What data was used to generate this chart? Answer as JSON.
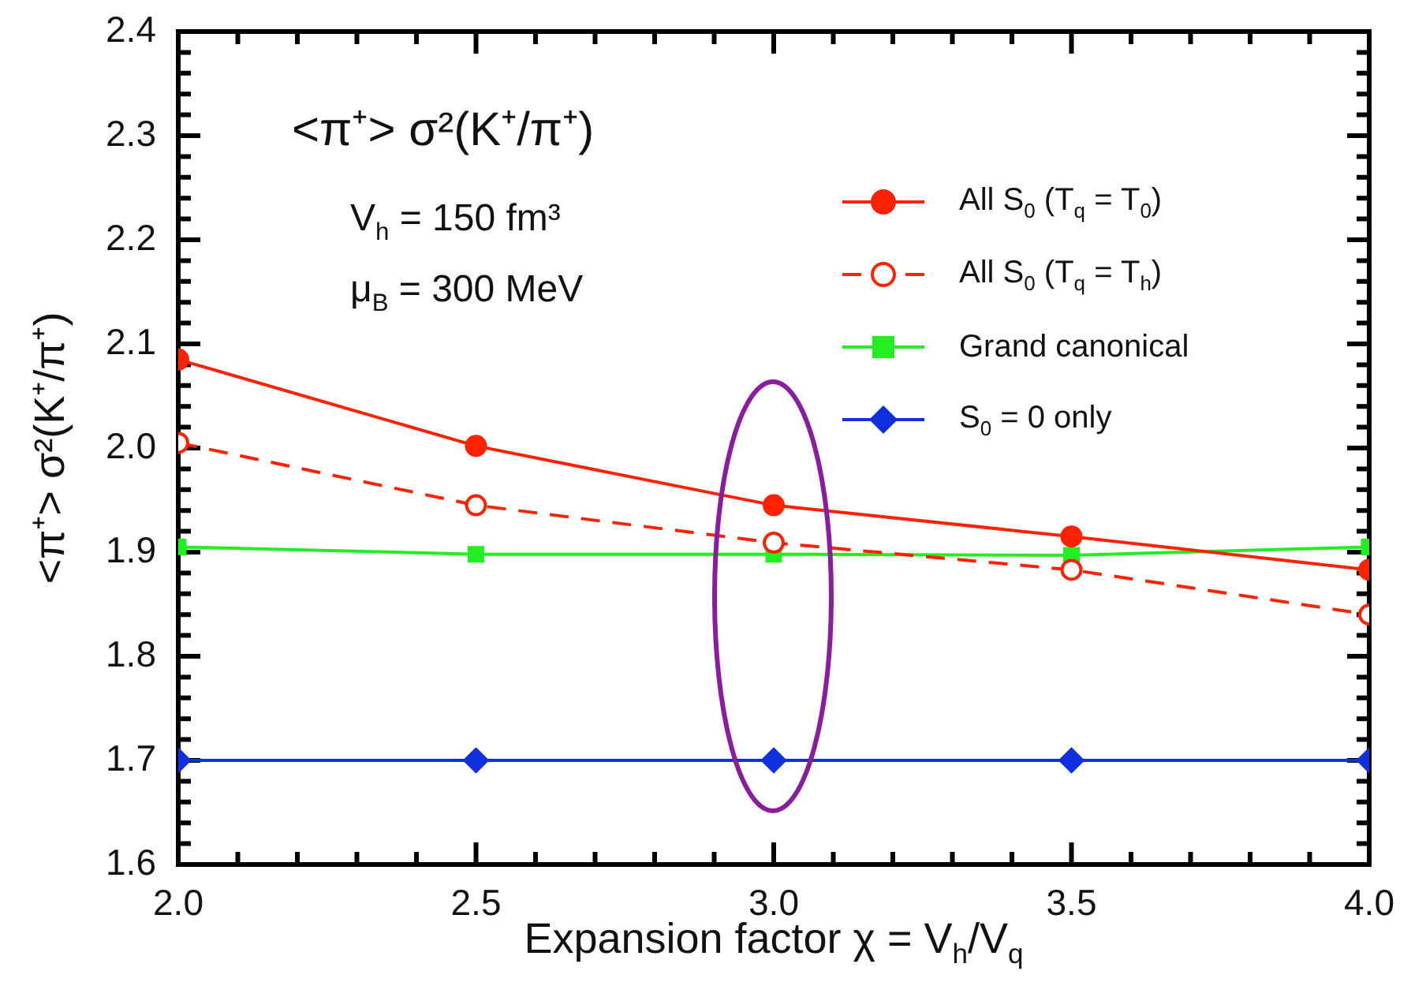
{
  "chart_data": {
    "type": "line",
    "title": "<π⁺> σ²(K⁺/π⁺)",
    "xlabel": "Expansion factor χ = V$_{h}$/V$_{q}$",
    "ylabel": "<π⁺> σ²(K⁺/π⁺)",
    "annotations": [
      "V$_{h}$ = 150 fm³",
      "μ$_{B}$ = 300 MeV"
    ],
    "x": [
      2.0,
      2.5,
      3.0,
      3.5,
      4.0
    ],
    "series": [
      {
        "name": "All S$_{0}$ (T$_{q}$ = T$_{0}$)",
        "color": "#ff2200",
        "marker": "circle",
        "line_style": "solid",
        "values": [
          2.085,
          2.002,
          1.945,
          1.915,
          1.883
        ]
      },
      {
        "name": "All S$_{0}$ (T$_{q}$ = T$_{h}$)",
        "color": "#ff2200",
        "marker": "circle",
        "line_style": "dashed",
        "values": [
          2.005,
          1.945,
          1.909,
          1.883,
          1.84
        ]
      },
      {
        "name": "Grand canonical",
        "color": "#22ee22",
        "marker": "square",
        "line_style": "solid",
        "values": [
          1.905,
          1.898,
          1.898,
          1.897,
          1.905
        ]
      },
      {
        "name": "S$_{0}$ = 0  only",
        "color": "#1030e0",
        "marker": "diamond",
        "line_style": "solid",
        "values": [
          1.7,
          1.7,
          1.7,
          1.7,
          1.7
        ]
      }
    ],
    "xlim": [
      2.0,
      4.0
    ],
    "xticks": [
      {
        "value": 2.0,
        "label": "2.0"
      },
      {
        "value": 2.1,
        "label": null
      },
      {
        "value": 2.2,
        "label": null
      },
      {
        "value": 2.3,
        "label": null
      },
      {
        "value": 2.4,
        "label": null
      },
      2.5,
      {
        "value": 2.6,
        "label": null
      },
      {
        "value": 2.7,
        "label": null
      },
      {
        "value": 2.8,
        "label": null
      },
      {
        "value": 2.9,
        "label": null
      },
      {
        "value": 3.0,
        "label": "3.0"
      },
      {
        "value": 3.1,
        "label": null
      },
      {
        "value": 3.2,
        "label": null
      },
      {
        "value": 3.3,
        "label": null
      },
      {
        "value": 3.4,
        "label": null
      },
      3.5,
      {
        "value": 3.6,
        "label": null
      },
      {
        "value": 3.7,
        "label": null
      },
      {
        "value": 3.8,
        "label": null
      },
      {
        "value": 3.9,
        "label": null
      },
      {
        "value": 4.0,
        "label": "4.0"
      }
    ],
    "ylim": [
      1.6,
      2.4
    ],
    "yticks": [
      1.6,
      {
        "value": 1.62,
        "label": null
      },
      {
        "value": 1.64,
        "label": null
      },
      {
        "value": 1.66,
        "label": null
      },
      {
        "value": 1.68,
        "label": null
      },
      1.7,
      {
        "value": 1.72,
        "label": null
      },
      {
        "value": 1.74,
        "label": null
      },
      {
        "value": 1.76,
        "label": null
      },
      {
        "value": 1.78,
        "label": null
      },
      1.8,
      {
        "value": 1.82,
        "label": null
      },
      {
        "value": 1.84,
        "label": null
      },
      {
        "value": 1.86,
        "label": null
      },
      {
        "value": 1.88,
        "label": null
      },
      1.9,
      {
        "value": 1.92,
        "label": null
      },
      {
        "value": 1.94,
        "label": null
      },
      {
        "value": 1.96,
        "label": null
      },
      {
        "value": 1.98,
        "label": null
      },
      {
        "value": 2.0,
        "label": "2.0"
      },
      {
        "value": 2.02,
        "label": null
      },
      {
        "value": 2.04,
        "label": null
      },
      {
        "value": 2.06,
        "label": null
      },
      {
        "value": 2.08,
        "label": null
      },
      2.1,
      {
        "value": 2.12,
        "label": null
      },
      {
        "value": 2.14,
        "label": null
      },
      {
        "value": 2.16,
        "label": null
      },
      {
        "value": 2.18,
        "label": null
      },
      2.2,
      {
        "value": 2.22,
        "label": null
      },
      {
        "value": 2.24,
        "label": null
      },
      {
        "value": 2.26,
        "label": null
      },
      {
        "value": 2.28,
        "label": null
      },
      2.3,
      {
        "value": 2.32,
        "label": null
      },
      {
        "value": 2.34,
        "label": null
      },
      {
        "value": 2.36,
        "label": null
      },
      {
        "value": 2.38,
        "label": null
      },
      2.4
    ],
    "grid": false,
    "legend": "top right"
  }
}
